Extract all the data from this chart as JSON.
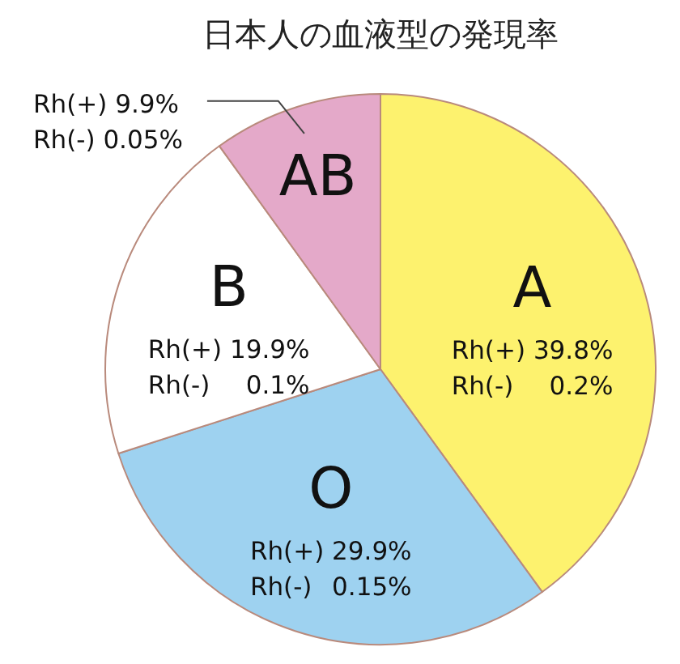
{
  "chart_data": {
    "type": "pie",
    "title": "日本人の血液型の発現率",
    "categories": [
      "A",
      "O",
      "B",
      "AB"
    ],
    "values": [
      40,
      30.05,
      20,
      9.95
    ],
    "colors": [
      "#fdf26e",
      "#9ed2f0",
      "#ffffff",
      "#e4a9c9"
    ],
    "annotations": [
      "Rh(+) 39.8%\nRh(-) 0.2%",
      "Rh(+) 29.9%\nRh(-) 0.15%",
      "Rh(+) 19.9%\nRh(-) 0.1%",
      "Rh(+) 9.9%\nRh(-) 0.05%"
    ]
  }
}
